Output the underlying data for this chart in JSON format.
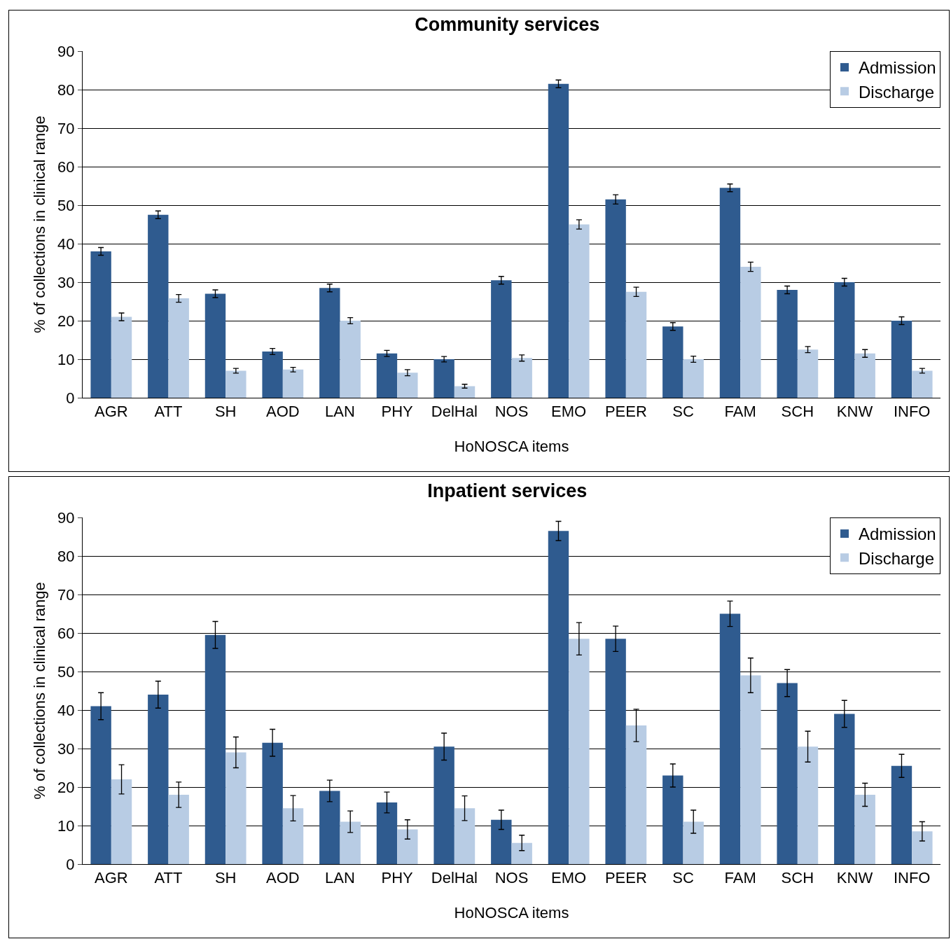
{
  "chart_data": [
    {
      "type": "bar",
      "title": "Community services",
      "xlabel": "HoNOSCA items",
      "ylabel": "% of collections in clinical range",
      "categories": [
        "AGR",
        "ATT",
        "SH",
        "AOD",
        "LAN",
        "PHY",
        "DelHal",
        "NOS",
        "EMO",
        "PEER",
        "SC",
        "FAM",
        "SCH",
        "KNW",
        "INFO"
      ],
      "ylim": [
        0,
        90
      ],
      "yticks": [
        0,
        10,
        20,
        30,
        40,
        50,
        60,
        70,
        80,
        90
      ],
      "grid": "y",
      "legend": "top right",
      "series": [
        {
          "name": "Admission",
          "color": "#2f5b8f",
          "values": [
            38,
            47.5,
            27,
            12,
            28.5,
            11.5,
            10,
            30.5,
            81.5,
            51.5,
            18.5,
            54.5,
            28,
            30,
            20
          ],
          "errors": [
            1,
            1,
            1,
            0.8,
            1,
            0.8,
            0.7,
            1,
            1,
            1.2,
            1,
            1,
            1,
            1,
            1
          ]
        },
        {
          "name": "Discharge",
          "color": "#b8cce4",
          "values": [
            21,
            25.8,
            7,
            7.3,
            20,
            6.5,
            3,
            10.3,
            45,
            27.5,
            10,
            34,
            12.5,
            11.5,
            7
          ],
          "errors": [
            1,
            1,
            0.6,
            0.6,
            0.8,
            0.8,
            0.5,
            0.8,
            1.2,
            1.2,
            0.8,
            1.2,
            0.8,
            1,
            0.6
          ]
        }
      ]
    },
    {
      "type": "bar",
      "title": "Inpatient services",
      "xlabel": "HoNOSCA items",
      "ylabel": "% of collections in clinical range",
      "categories": [
        "AGR",
        "ATT",
        "SH",
        "AOD",
        "LAN",
        "PHY",
        "DelHal",
        "NOS",
        "EMO",
        "PEER",
        "SC",
        "FAM",
        "SCH",
        "KNW",
        "INFO"
      ],
      "ylim": [
        0,
        90
      ],
      "yticks": [
        0,
        10,
        20,
        30,
        40,
        50,
        60,
        70,
        80,
        90
      ],
      "grid": "y",
      "legend": "top right",
      "series": [
        {
          "name": "Admission",
          "color": "#2f5b8f",
          "values": [
            41,
            44,
            59.5,
            31.5,
            19,
            16,
            30.5,
            11.5,
            86.5,
            58.5,
            23,
            65,
            47,
            39,
            25.5
          ],
          "errors": [
            3.5,
            3.5,
            3.5,
            3.5,
            2.8,
            2.7,
            3.5,
            2.5,
            2.5,
            3.3,
            3,
            3.3,
            3.5,
            3.5,
            3
          ]
        },
        {
          "name": "Discharge",
          "color": "#b8cce4",
          "values": [
            22,
            18,
            29,
            14.5,
            11,
            9,
            14.5,
            5.5,
            58.5,
            36,
            11,
            49,
            30.5,
            18,
            8.5
          ],
          "errors": [
            3.8,
            3.3,
            4,
            3.3,
            2.8,
            2.5,
            3.2,
            2,
            4.2,
            4.2,
            3,
            4.5,
            4,
            3,
            2.5
          ]
        }
      ]
    }
  ]
}
